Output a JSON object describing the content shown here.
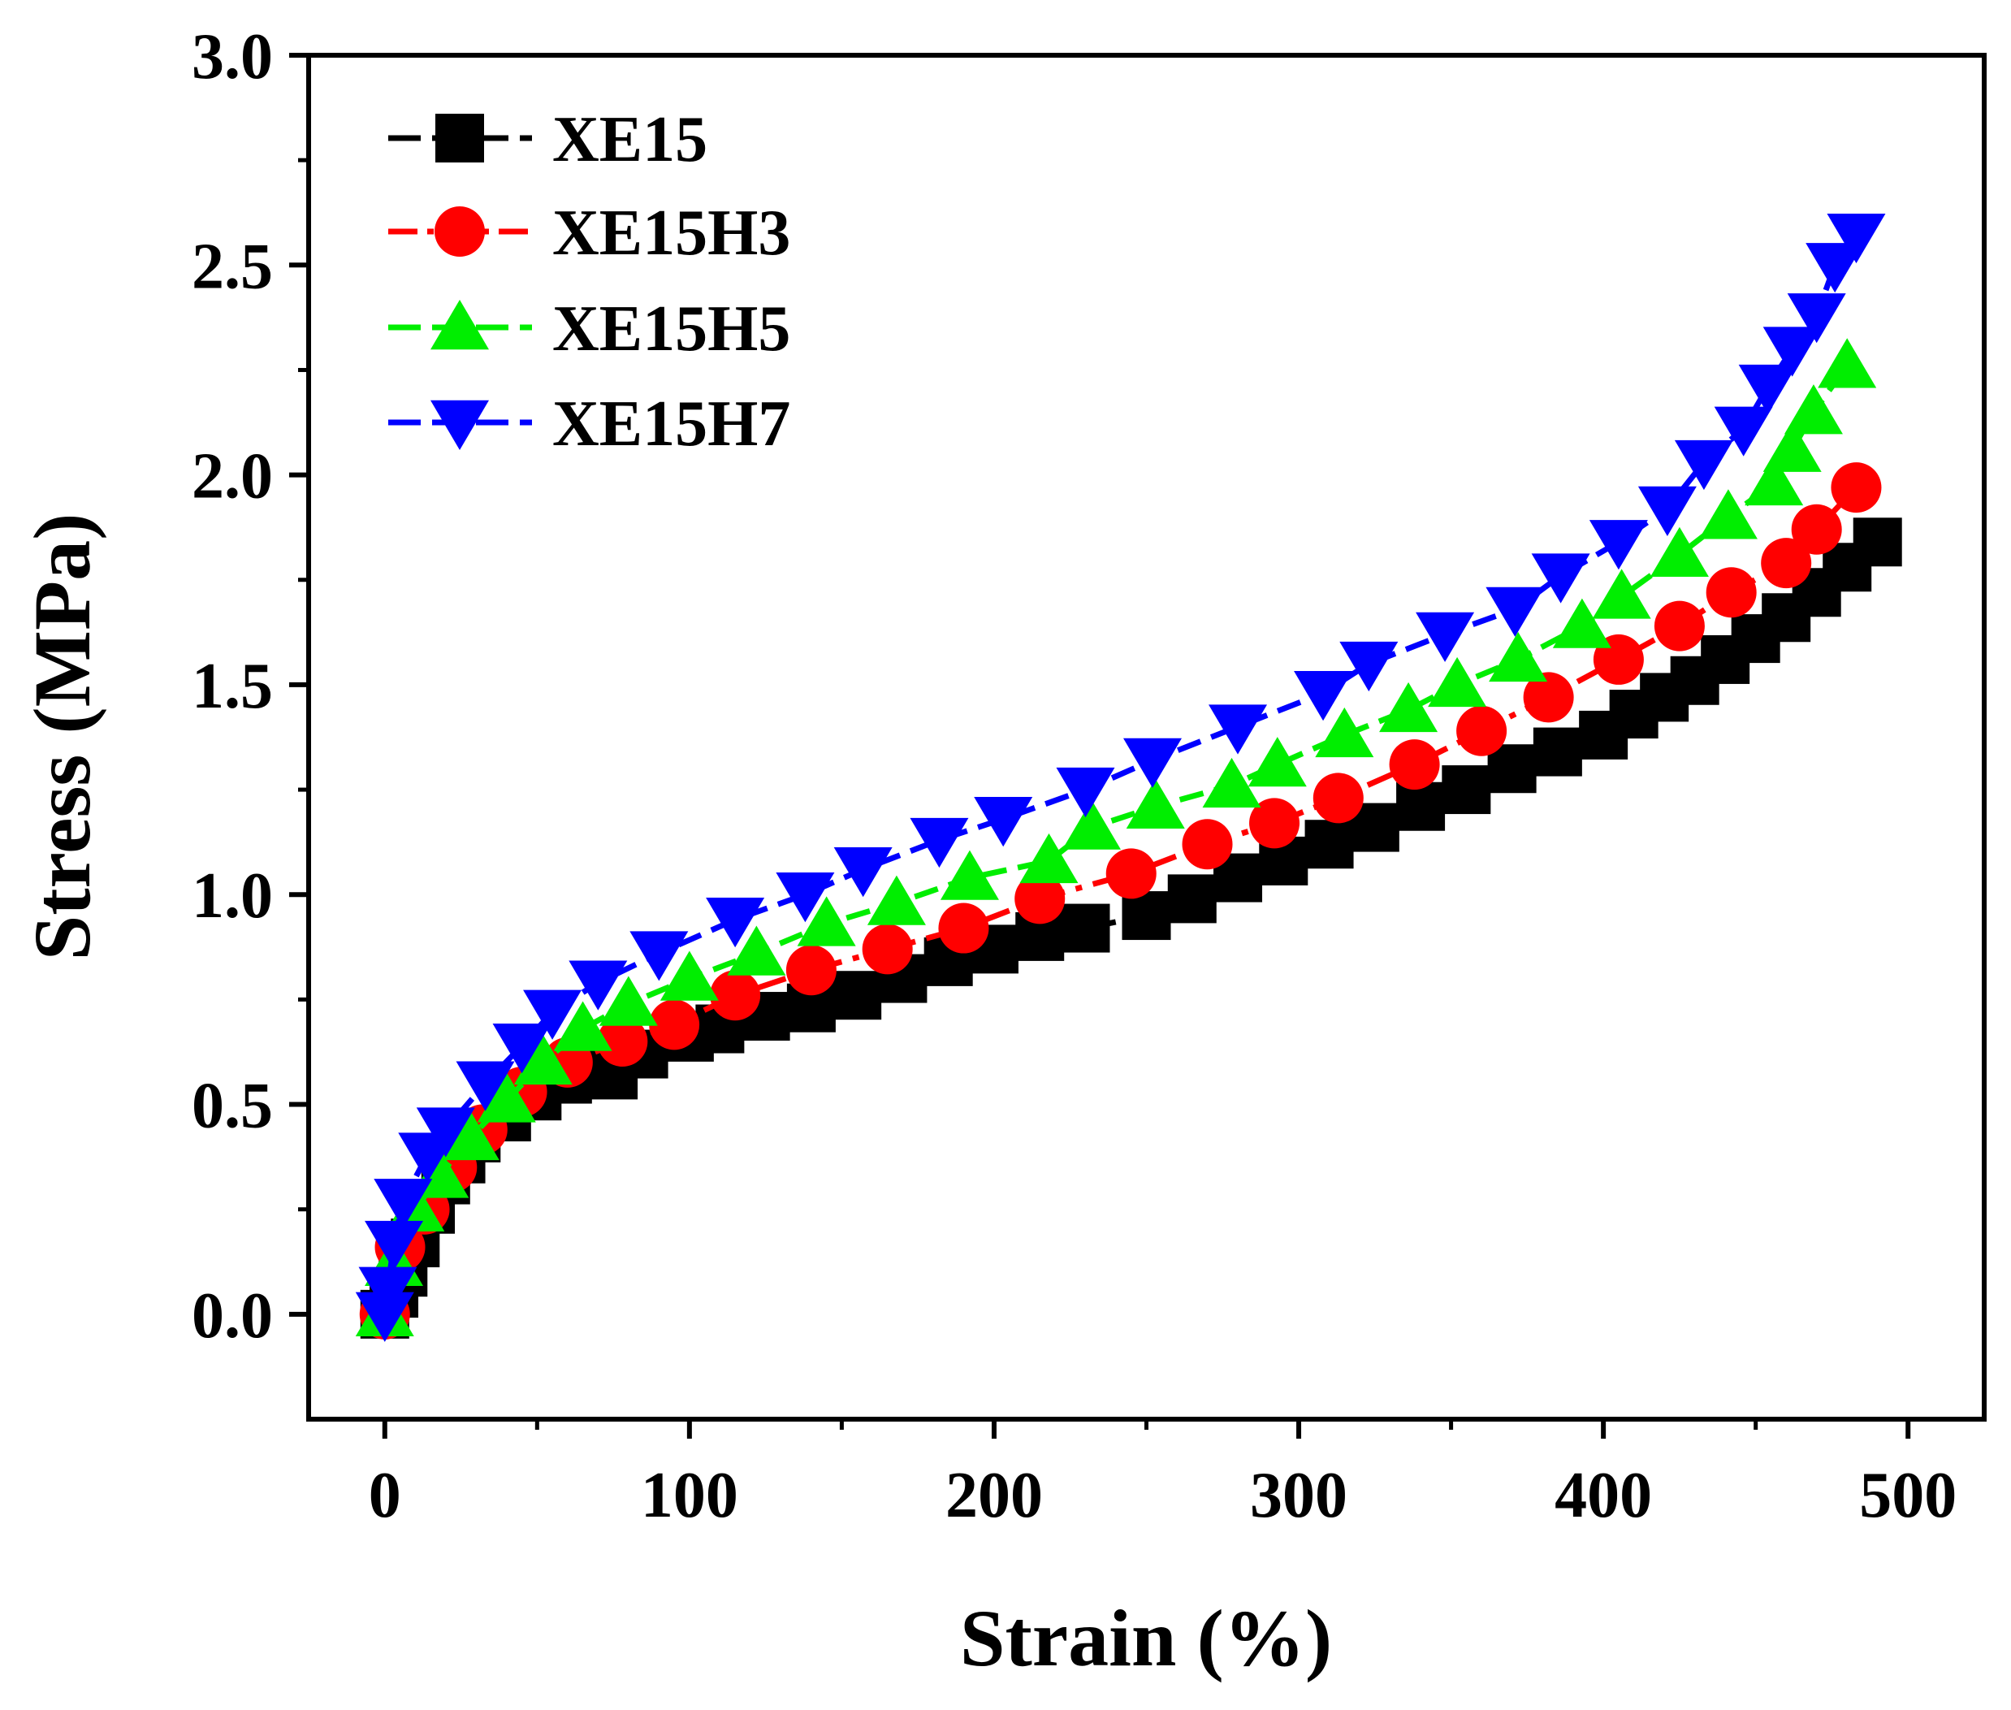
{
  "chart_data": {
    "type": "line",
    "title": "",
    "xlabel": "Strain (%)",
    "ylabel": "Stress (MPa)",
    "xlim": [
      -25,
      525
    ],
    "ylim": [
      -0.25,
      3.0
    ],
    "xticks": [
      0,
      100,
      200,
      300,
      400,
      500
    ],
    "yticks": [
      0.0,
      0.5,
      1.0,
      1.5,
      2.0,
      2.5,
      3.0
    ],
    "xtick_labels": [
      "0",
      "100",
      "200",
      "300",
      "400",
      "500"
    ],
    "ytick_labels": [
      "0.0",
      "0.5",
      "1.0",
      "1.5",
      "2.0",
      "2.5",
      "3.0"
    ],
    "grid": false,
    "legend_position": "top-left",
    "series": [
      {
        "name": "XE15",
        "color": "#000000",
        "marker": "square",
        "line_style": "dash",
        "x": [
          0,
          3,
          6,
          10,
          15,
          20,
          25,
          30,
          40,
          50,
          60,
          75,
          85,
          100,
          110,
          125,
          140,
          155,
          170,
          185,
          200,
          215,
          230,
          250,
          265,
          280,
          295,
          310,
          325,
          340,
          355,
          370,
          385,
          400,
          410,
          420,
          430,
          440,
          450,
          460,
          470,
          480,
          490
        ],
        "y": [
          0.0,
          0.05,
          0.1,
          0.17,
          0.25,
          0.32,
          0.37,
          0.42,
          0.47,
          0.52,
          0.56,
          0.57,
          0.62,
          0.66,
          0.68,
          0.71,
          0.73,
          0.76,
          0.8,
          0.84,
          0.87,
          0.9,
          0.92,
          0.95,
          0.99,
          1.04,
          1.08,
          1.12,
          1.16,
          1.21,
          1.25,
          1.3,
          1.34,
          1.38,
          1.43,
          1.47,
          1.51,
          1.56,
          1.61,
          1.66,
          1.72,
          1.78,
          1.84
        ]
      },
      {
        "name": "XE15H3",
        "color": "#ff0000",
        "marker": "circle",
        "line_style": "dashdot",
        "x": [
          0,
          5,
          13,
          22,
          32,
          45,
          60,
          78,
          95,
          115,
          140,
          165,
          190,
          215,
          245,
          270,
          292,
          313,
          338,
          360,
          382,
          405,
          425,
          442,
          460,
          470,
          483
        ],
        "y": [
          0.0,
          0.16,
          0.25,
          0.35,
          0.44,
          0.53,
          0.6,
          0.65,
          0.69,
          0.76,
          0.82,
          0.87,
          0.92,
          0.99,
          1.05,
          1.12,
          1.17,
          1.23,
          1.31,
          1.39,
          1.47,
          1.56,
          1.64,
          1.72,
          1.79,
          1.87,
          1.97
        ]
      },
      {
        "name": "XE15H5",
        "color": "#00ee00",
        "marker": "triangle-up",
        "line_style": "dash",
        "x": [
          0,
          3,
          10,
          18,
          28,
          40,
          52,
          65,
          80,
          100,
          122,
          145,
          168,
          192,
          218,
          232,
          253,
          278,
          293,
          315,
          336,
          352,
          372,
          393,
          406,
          425,
          441,
          456,
          462,
          469,
          480
        ],
        "y": [
          0.0,
          0.12,
          0.25,
          0.33,
          0.42,
          0.51,
          0.6,
          0.68,
          0.74,
          0.8,
          0.86,
          0.93,
          0.98,
          1.04,
          1.08,
          1.16,
          1.21,
          1.26,
          1.31,
          1.38,
          1.44,
          1.5,
          1.56,
          1.64,
          1.71,
          1.81,
          1.9,
          1.98,
          2.06,
          2.15,
          2.26
        ]
      },
      {
        "name": "XE15H7",
        "color": "#0000ff",
        "marker": "triangle-down",
        "line_style": "dash",
        "x": [
          0,
          1,
          3,
          6,
          14,
          20,
          33,
          45,
          55,
          70,
          90,
          115,
          138,
          157,
          182,
          203,
          230,
          252,
          280,
          308,
          323,
          348,
          371,
          386,
          405,
          421,
          433,
          446,
          454,
          462,
          470,
          476,
          483
        ],
        "y": [
          0.0,
          0.06,
          0.17,
          0.27,
          0.38,
          0.44,
          0.55,
          0.64,
          0.72,
          0.79,
          0.86,
          0.94,
          1.0,
          1.06,
          1.13,
          1.18,
          1.25,
          1.32,
          1.4,
          1.48,
          1.55,
          1.62,
          1.68,
          1.76,
          1.84,
          1.92,
          2.03,
          2.11,
          2.21,
          2.3,
          2.38,
          2.5,
          2.57
        ]
      }
    ]
  }
}
